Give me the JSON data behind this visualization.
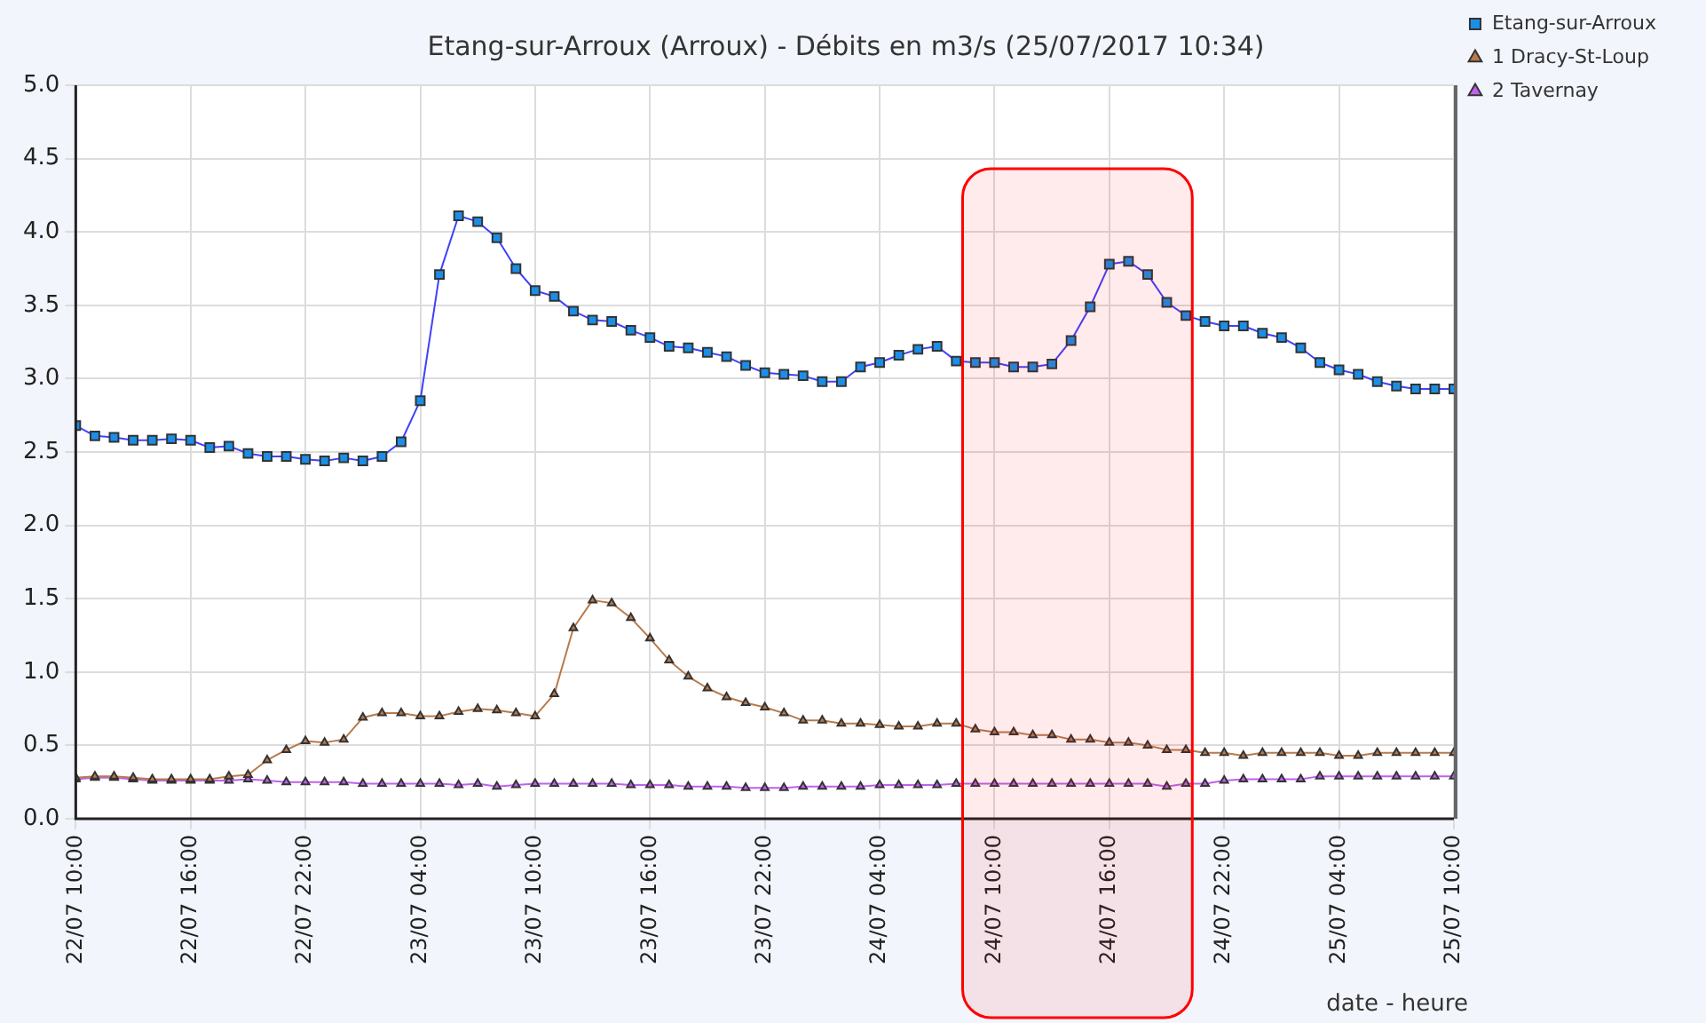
{
  "chart_data": {
    "type": "line",
    "title": "Etang-sur-Arroux (Arroux) - Débits en m3/s (25/07/2017 10:34)",
    "xlabel": "date - heure",
    "x": [
      "2017-07-22T10:00",
      "2017-07-22T11:00",
      "2017-07-22T12:00",
      "2017-07-22T13:00",
      "2017-07-22T14:00",
      "2017-07-22T15:00",
      "2017-07-22T16:00",
      "2017-07-22T17:00",
      "2017-07-22T18:00",
      "2017-07-22T19:00",
      "2017-07-22T20:00",
      "2017-07-22T21:00",
      "2017-07-22T22:00",
      "2017-07-22T23:00",
      "2017-07-23T00:00",
      "2017-07-23T01:00",
      "2017-07-23T02:00",
      "2017-07-23T03:00",
      "2017-07-23T04:00",
      "2017-07-23T05:00",
      "2017-07-23T06:00",
      "2017-07-23T07:00",
      "2017-07-23T08:00",
      "2017-07-23T09:00",
      "2017-07-23T10:00",
      "2017-07-23T11:00",
      "2017-07-23T12:00",
      "2017-07-23T13:00",
      "2017-07-23T14:00",
      "2017-07-23T15:00",
      "2017-07-23T16:00",
      "2017-07-23T17:00",
      "2017-07-23T18:00",
      "2017-07-23T19:00",
      "2017-07-23T20:00",
      "2017-07-23T21:00",
      "2017-07-23T22:00",
      "2017-07-23T23:00",
      "2017-07-24T00:00",
      "2017-07-24T01:00",
      "2017-07-24T02:00",
      "2017-07-24T03:00",
      "2017-07-24T04:00",
      "2017-07-24T05:00",
      "2017-07-24T06:00",
      "2017-07-24T07:00",
      "2017-07-24T08:00",
      "2017-07-24T09:00",
      "2017-07-24T10:00",
      "2017-07-24T11:00",
      "2017-07-24T12:00",
      "2017-07-24T13:00",
      "2017-07-24T14:00",
      "2017-07-24T15:00",
      "2017-07-24T16:00",
      "2017-07-24T17:00",
      "2017-07-24T18:00",
      "2017-07-24T19:00",
      "2017-07-24T20:00",
      "2017-07-24T21:00",
      "2017-07-24T22:00",
      "2017-07-24T23:00",
      "2017-07-25T00:00",
      "2017-07-25T01:00",
      "2017-07-25T02:00",
      "2017-07-25T03:00",
      "2017-07-25T04:00",
      "2017-07-25T05:00",
      "2017-07-25T06:00",
      "2017-07-25T07:00",
      "2017-07-25T08:00",
      "2017-07-25T09:00",
      "2017-07-25T10:00"
    ],
    "series": [
      {
        "name": "Etang-sur-Arroux",
        "color": "#4040ff",
        "marker": "square",
        "values": [
          2.68,
          2.61,
          2.6,
          2.58,
          2.58,
          2.59,
          2.58,
          2.53,
          2.54,
          2.49,
          2.47,
          2.47,
          2.45,
          2.44,
          2.46,
          2.44,
          2.47,
          2.57,
          2.85,
          3.71,
          4.11,
          4.07,
          3.96,
          3.75,
          3.6,
          3.56,
          3.46,
          3.4,
          3.39,
          3.33,
          3.28,
          3.22,
          3.21,
          3.18,
          3.15,
          3.09,
          3.04,
          3.03,
          3.02,
          2.98,
          2.98,
          3.08,
          3.11,
          3.16,
          3.2,
          3.22,
          3.12,
          3.11,
          3.11,
          3.08,
          3.08,
          3.1,
          3.26,
          3.49,
          3.78,
          3.8,
          3.71,
          3.52,
          3.43,
          3.39,
          3.36,
          3.36,
          3.31,
          3.28,
          3.21,
          3.11,
          3.06,
          3.03,
          2.98,
          2.95,
          2.93,
          2.93,
          2.93
        ]
      },
      {
        "name": "1 Dracy-St-Loup",
        "color": "#b87a4b",
        "marker": "triangle",
        "values": [
          0.28,
          0.29,
          0.29,
          0.28,
          0.27,
          0.27,
          0.27,
          0.27,
          0.29,
          0.3,
          0.4,
          0.47,
          0.53,
          0.52,
          0.54,
          0.69,
          0.72,
          0.72,
          0.7,
          0.7,
          0.73,
          0.75,
          0.74,
          0.72,
          0.7,
          0.85,
          1.3,
          1.49,
          1.47,
          1.37,
          1.23,
          1.08,
          0.97,
          0.89,
          0.83,
          0.79,
          0.76,
          0.72,
          0.67,
          0.67,
          0.65,
          0.65,
          0.64,
          0.63,
          0.63,
          0.65,
          0.65,
          0.61,
          0.59,
          0.59,
          0.57,
          0.57,
          0.54,
          0.54,
          0.52,
          0.52,
          0.5,
          0.47,
          0.47,
          0.45,
          0.45,
          0.43,
          0.45,
          0.45,
          0.45,
          0.45,
          0.43,
          0.43,
          0.45,
          0.45,
          0.45,
          0.45,
          0.45
        ]
      },
      {
        "name": "2 Tavernay",
        "color": "#c060f0",
        "marker": "triangle",
        "values": [
          0.27,
          0.28,
          0.28,
          0.27,
          0.26,
          0.26,
          0.26,
          0.26,
          0.26,
          0.27,
          0.26,
          0.25,
          0.25,
          0.25,
          0.25,
          0.24,
          0.24,
          0.24,
          0.24,
          0.24,
          0.23,
          0.24,
          0.22,
          0.23,
          0.24,
          0.24,
          0.24,
          0.24,
          0.24,
          0.23,
          0.23,
          0.23,
          0.22,
          0.22,
          0.22,
          0.21,
          0.21,
          0.21,
          0.22,
          0.22,
          0.22,
          0.22,
          0.23,
          0.23,
          0.23,
          0.23,
          0.24,
          0.24,
          0.24,
          0.24,
          0.24,
          0.24,
          0.24,
          0.24,
          0.24,
          0.24,
          0.24,
          0.22,
          0.24,
          0.24,
          0.26,
          0.27,
          0.27,
          0.27,
          0.27,
          0.29,
          0.29,
          0.29,
          0.29,
          0.29,
          0.29,
          0.29,
          0.29
        ]
      }
    ],
    "xlim": [
      "2017-07-22T10:00",
      "2017-07-25T10:00"
    ],
    "xticks": [
      {
        "value": "2017-07-22T10:00",
        "label": "22/07 10:00"
      },
      {
        "value": "2017-07-22T16:00",
        "label": "22/07 16:00"
      },
      {
        "value": "2017-07-22T22:00",
        "label": "22/07 22:00"
      },
      {
        "value": "2017-07-23T04:00",
        "label": "23/07 04:00"
      },
      {
        "value": "2017-07-23T10:00",
        "label": "23/07 10:00"
      },
      {
        "value": "2017-07-23T16:00",
        "label": "23/07 16:00"
      },
      {
        "value": "2017-07-23T22:00",
        "label": "23/07 22:00"
      },
      {
        "value": "2017-07-24T04:00",
        "label": "24/07 04:00"
      },
      {
        "value": "2017-07-24T10:00",
        "label": "24/07 10:00"
      },
      {
        "value": "2017-07-24T16:00",
        "label": "24/07 16:00"
      },
      {
        "value": "2017-07-24T22:00",
        "label": "24/07 22:00"
      },
      {
        "value": "2017-07-25T04:00",
        "label": "25/07 04:00"
      },
      {
        "value": "2017-07-25T10:00",
        "label": "25/07 10:00"
      }
    ],
    "ylim": [
      0,
      5
    ],
    "yticks": [
      {
        "value": 0,
        "label": "0.0"
      },
      {
        "value": 0.5,
        "label": "0.5"
      },
      {
        "value": 1,
        "label": "1.0"
      },
      {
        "value": 1.5,
        "label": "1.5"
      },
      {
        "value": 2,
        "label": "2.0"
      },
      {
        "value": 2.5,
        "label": "2.5"
      },
      {
        "value": 3,
        "label": "3.0"
      },
      {
        "value": 3.5,
        "label": "3.5"
      },
      {
        "value": 4,
        "label": "4.0"
      },
      {
        "value": 4.5,
        "label": "4.5"
      },
      {
        "value": 5,
        "label": "5.0"
      }
    ],
    "bands": [
      {
        "axis": "x",
        "from": "2017-07-24T08:20",
        "to": "2017-07-24T20:20",
        "color": "#ff0000"
      }
    ],
    "grid": true,
    "legend": "top right",
    "line_style": "solid"
  }
}
